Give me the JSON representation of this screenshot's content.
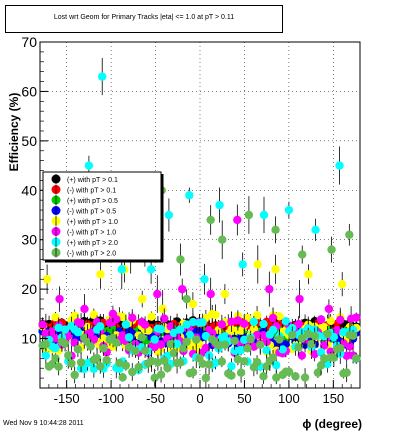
{
  "chart_data": {
    "type": "scatter",
    "title": "Lost wrt Geom for Primary Tracks |eta| <= 1.0 at pT > 0.11",
    "xlabel": "ϕ (degree)",
    "ylabel": "Efficiency (%)",
    "xlim": [
      -180,
      180
    ],
    "ylim": [
      0,
      70
    ],
    "x_ticks": [
      -150,
      -100,
      -50,
      0,
      50,
      100,
      150
    ],
    "y_ticks": [
      10,
      20,
      30,
      40,
      50,
      60,
      70
    ],
    "grid": true,
    "legend_position": "left",
    "series": [
      {
        "name": "(+) with pT > 0.1",
        "color": "#000000",
        "level": 12.5,
        "spread": 1.2
      },
      {
        "name": "(-) with pT > 0.1",
        "color": "#ff0000",
        "level": 12.2,
        "spread": 1.2
      },
      {
        "name": "(+) with pT > 0.5",
        "color": "#00cc00",
        "level": 10.5,
        "spread": 1.5
      },
      {
        "name": "(-) with pT > 0.5",
        "color": "#0000ff",
        "level": 10.2,
        "spread": 1.5
      },
      {
        "name": "(+) with pT > 1.0",
        "color": "#ffff00",
        "level": 11.0,
        "spread": 4.0,
        "outliers": [
          [
            -172,
            22
          ],
          [
            -112,
            23
          ],
          [
            -85,
            24
          ],
          [
            -65,
            18
          ],
          [
            -42,
            16
          ],
          [
            -8,
            17
          ],
          [
            28,
            19
          ],
          [
            65,
            25
          ],
          [
            85,
            24
          ],
          [
            122,
            23
          ],
          [
            160,
            21
          ]
        ]
      },
      {
        "name": "(-) with pT > 1.0",
        "color": "#ff00ff",
        "level": 10.5,
        "spread": 4.0,
        "outliers": [
          [
            -158,
            18
          ],
          [
            -130,
            16
          ],
          [
            -98,
            15
          ],
          [
            -48,
            19
          ],
          [
            -20,
            20
          ],
          [
            12,
            19
          ],
          [
            42,
            34
          ],
          [
            78,
            20
          ],
          [
            112,
            18
          ],
          [
            145,
            16
          ],
          [
            170,
            14
          ]
        ]
      },
      {
        "name": "(+) with pT > 2.0",
        "color": "#00ffff",
        "level": 8.5,
        "spread": 5.0,
        "outliers": [
          [
            -110,
            63
          ],
          [
            -125,
            45
          ],
          [
            -88,
            24
          ],
          [
            -55,
            24
          ],
          [
            -35,
            35
          ],
          [
            -12,
            39
          ],
          [
            5,
            22
          ],
          [
            22,
            37
          ],
          [
            48,
            25
          ],
          [
            72,
            35
          ],
          [
            100,
            36
          ],
          [
            130,
            32
          ],
          [
            157,
            45
          ]
        ]
      },
      {
        "name": "(-) with pT > 2.0",
        "color": "#66bb55",
        "level": 6.5,
        "spread": 4.5,
        "outliers": [
          [
            -102,
            33
          ],
          [
            -78,
            27
          ],
          [
            -62,
            28
          ],
          [
            -43,
            40
          ],
          [
            -22,
            26
          ],
          [
            -15,
            18
          ],
          [
            12,
            34
          ],
          [
            25,
            30
          ],
          [
            55,
            35
          ],
          [
            85,
            32
          ],
          [
            115,
            27
          ],
          [
            148,
            28
          ],
          [
            168,
            31
          ]
        ]
      }
    ]
  },
  "footer": {
    "timestamp": "Wed Nov  9 10:44:28 2011"
  }
}
